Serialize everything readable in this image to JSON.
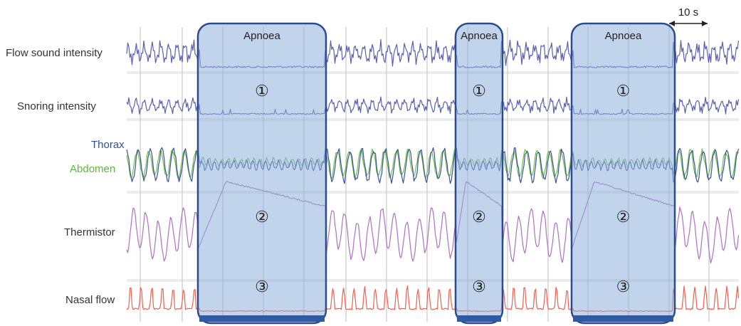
{
  "labels": {
    "flow_sound": "Flow sound intensity",
    "snoring": "Snoring intensity",
    "thorax": "Thorax",
    "abdomen": "Abdomen",
    "thermistor": "Thermistor",
    "nasal_flow": "Nasal flow"
  },
  "scale": "10 s",
  "apnoea_boxes": [
    {
      "label": "Apnoea",
      "marker_top": "①",
      "marker_mid": "②",
      "marker_bottom": "③"
    },
    {
      "label": "Apnoea",
      "marker_top": "①",
      "marker_mid": "②",
      "marker_bottom": "③"
    },
    {
      "label": "Apnoea",
      "marker_top": "①",
      "marker_mid": "②",
      "marker_bottom": "③"
    }
  ],
  "colors": {
    "flow": "#5b5fb0",
    "thorax": "#3c4fa0",
    "abdomen": "#6cc04a",
    "thermistor": "#b070c0",
    "nasal": "#ee6050",
    "box_fill": "#8fb0dc",
    "box_stroke": "#2a4b8d",
    "label_thorax": "#2e4e9a",
    "label_abdomen": "#5cb83c"
  }
}
